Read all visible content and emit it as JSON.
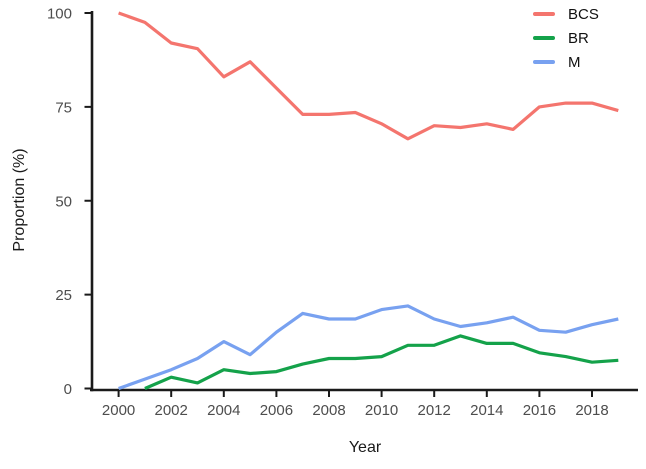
{
  "figure": {
    "background": "#ffffff",
    "axis_color": "#1a1a1a",
    "tick_label_color": "#4d4d4d"
  },
  "chart_data": {
    "type": "line",
    "title": "",
    "xlabel": "Year",
    "ylabel": "Proportion (%)",
    "xlim": [
      2000,
      2019
    ],
    "ylim": [
      0,
      100
    ],
    "grid": false,
    "legend_position": "top-right",
    "x": [
      2000,
      2001,
      2002,
      2003,
      2004,
      2005,
      2006,
      2007,
      2008,
      2009,
      2010,
      2011,
      2012,
      2013,
      2014,
      2015,
      2016,
      2017,
      2018,
      2019
    ],
    "x_tick_labels": [
      "2000",
      "2002",
      "2004",
      "2006",
      "2008",
      "2010",
      "2012",
      "2014",
      "2016",
      "2018"
    ],
    "x_tick_years": [
      2000,
      2002,
      2004,
      2006,
      2008,
      2010,
      2012,
      2014,
      2016,
      2018
    ],
    "y_ticks": [
      0,
      25,
      50,
      75,
      100
    ],
    "y_tick_labels": [
      "0",
      "25",
      "50",
      "75",
      "100"
    ],
    "series": [
      {
        "name": "BCS",
        "color": "#F4756E",
        "values": [
          100,
          97.5,
          92,
          90.5,
          83,
          87,
          80,
          73,
          73,
          73.5,
          70.5,
          66.5,
          70,
          69.5,
          70.5,
          69,
          75,
          76,
          76,
          74
        ]
      },
      {
        "name": "BR",
        "color": "#14A24A",
        "values": [
          null,
          0,
          3,
          1.5,
          5,
          4,
          4.5,
          6.5,
          8,
          8,
          8.5,
          11.5,
          11.5,
          14,
          12,
          12,
          9.5,
          8.5,
          7,
          7.5
        ]
      },
      {
        "name": "M",
        "color": "#78A1F0",
        "values": [
          0,
          2.5,
          5,
          8,
          12.5,
          9,
          15,
          20,
          18.5,
          18.5,
          21,
          22,
          18.5,
          16.5,
          17.5,
          19,
          15.5,
          15,
          17,
          18.5
        ]
      }
    ]
  }
}
